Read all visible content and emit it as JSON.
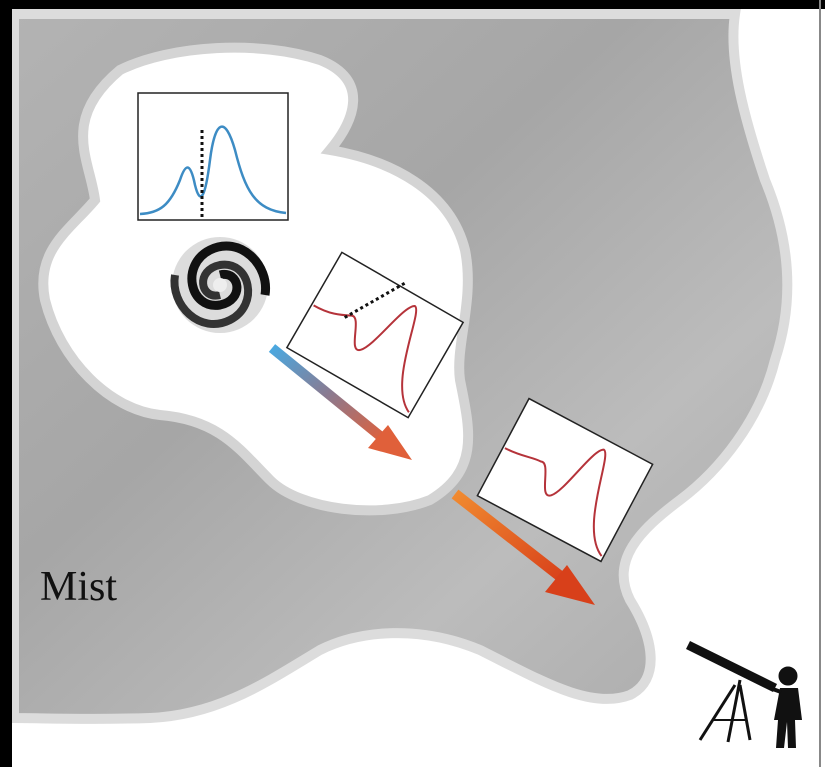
{
  "label": "Mist"
}
